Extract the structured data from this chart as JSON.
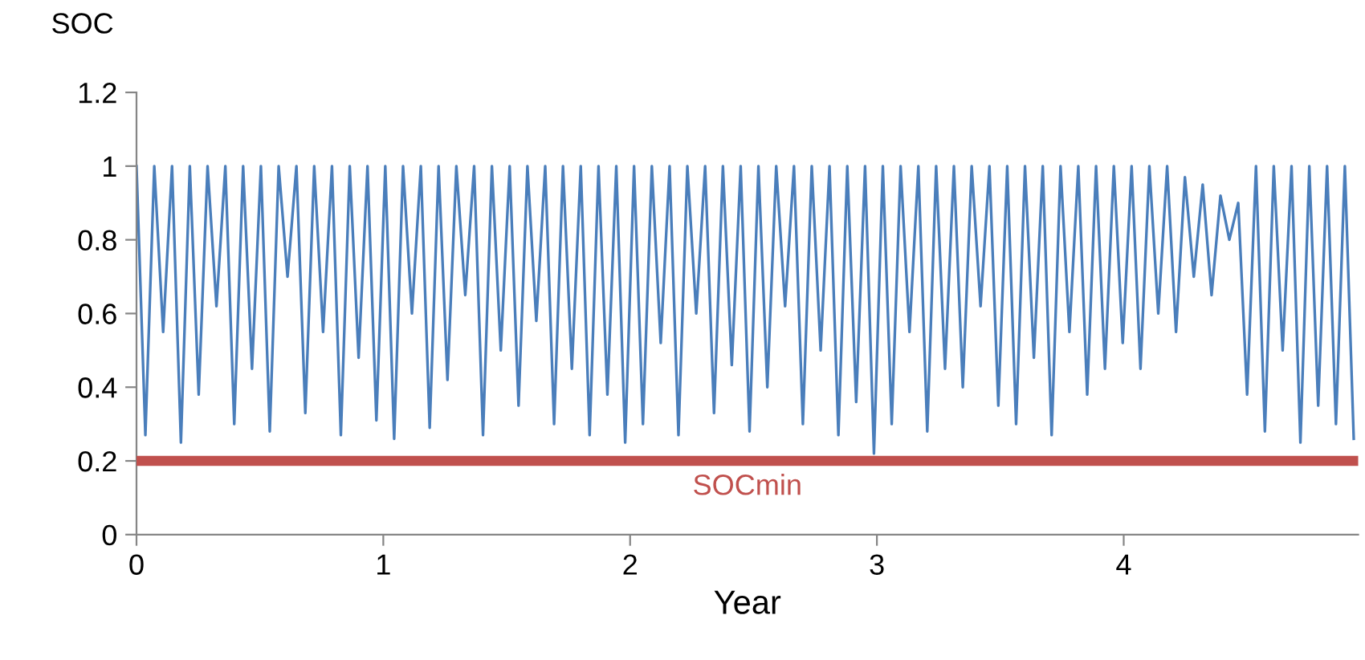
{
  "chart_data": {
    "type": "line",
    "xlabel": "Year",
    "ylabel": "SOC",
    "x": [
      0,
      0.036,
      0.072,
      0.108,
      0.144,
      0.18,
      0.216,
      0.252,
      0.288,
      0.324,
      0.36,
      0.396,
      0.432,
      0.468,
      0.504,
      0.54,
      0.576,
      0.612,
      0.648,
      0.684,
      0.72,
      0.756,
      0.792,
      0.828,
      0.864,
      0.9,
      0.936,
      0.972,
      1.008,
      1.044,
      1.08,
      1.116,
      1.152,
      1.188,
      1.224,
      1.26,
      1.296,
      1.332,
      1.368,
      1.404,
      1.44,
      1.476,
      1.512,
      1.548,
      1.584,
      1.62,
      1.656,
      1.692,
      1.728,
      1.764,
      1.8,
      1.836,
      1.872,
      1.908,
      1.944,
      1.98,
      2.016,
      2.052,
      2.088,
      2.124,
      2.16,
      2.196,
      2.232,
      2.268,
      2.304,
      2.34,
      2.376,
      2.412,
      2.448,
      2.484,
      2.52,
      2.556,
      2.592,
      2.628,
      2.664,
      2.7,
      2.736,
      2.772,
      2.808,
      2.844,
      2.88,
      2.916,
      2.952,
      2.988,
      3.024,
      3.06,
      3.096,
      3.132,
      3.168,
      3.204,
      3.24,
      3.276,
      3.312,
      3.348,
      3.384,
      3.42,
      3.456,
      3.492,
      3.528,
      3.564,
      3.6,
      3.636,
      3.672,
      3.708,
      3.744,
      3.78,
      3.816,
      3.852,
      3.888,
      3.924,
      3.96,
      3.996,
      4.032,
      4.068,
      4.104,
      4.14,
      4.176,
      4.212,
      4.248,
      4.284,
      4.32,
      4.356,
      4.392,
      4.428,
      4.464,
      4.5,
      4.536,
      4.572,
      4.608,
      4.644,
      4.68,
      4.716,
      4.752,
      4.788,
      4.824,
      4.86,
      4.896,
      4.932
    ],
    "series": [
      {
        "color": "#4a7ebb",
        "values": [
          1,
          0.27,
          1,
          0.55,
          1,
          0.25,
          1,
          0.38,
          1,
          0.62,
          1,
          0.3,
          1,
          0.45,
          1,
          0.28,
          1,
          0.7,
          1,
          0.33,
          1,
          0.55,
          1,
          0.27,
          1,
          0.48,
          1,
          0.31,
          1,
          0.26,
          1,
          0.6,
          1,
          0.29,
          1,
          0.42,
          1,
          0.65,
          1,
          0.27,
          1,
          0.5,
          1,
          0.35,
          1,
          0.58,
          1,
          0.3,
          1,
          0.45,
          1,
          0.27,
          1,
          0.38,
          1,
          0.25,
          1,
          0.3,
          1,
          0.52,
          1,
          0.27,
          1,
          0.6,
          1,
          0.33,
          1,
          0.46,
          1,
          0.28,
          1,
          0.4,
          1,
          0.62,
          1,
          0.3,
          1,
          0.5,
          1,
          0.27,
          1,
          0.36,
          1,
          0.22,
          1,
          0.3,
          1,
          0.55,
          1,
          0.28,
          1,
          0.45,
          1,
          0.4,
          1,
          0.62,
          1,
          0.35,
          1,
          0.3,
          1,
          0.48,
          1,
          0.27,
          1,
          0.55,
          1,
          0.38,
          1,
          0.45,
          1,
          0.52,
          1,
          0.45,
          1,
          0.6,
          1,
          0.55,
          0.97,
          0.7,
          0.95,
          0.65,
          0.92,
          0.8,
          0.9,
          0.38,
          1,
          0.28,
          1,
          0.5,
          1,
          0.25,
          1,
          0.35,
          1,
          0.3,
          1,
          0.26
        ]
      }
    ],
    "xlim": [
      0,
      4.95
    ],
    "xticks": [
      0,
      1,
      2,
      3,
      4
    ],
    "ylim": [
      0,
      1.2
    ],
    "yticks": [
      0,
      0.2,
      0.4,
      0.6,
      0.8,
      1,
      1.2
    ],
    "ref_lines": [
      {
        "axis": "y",
        "value": 0.2,
        "label": "SOCmin",
        "color": "#c0504d"
      }
    ],
    "grid": false,
    "marker": "none",
    "line_style": "solid"
  }
}
